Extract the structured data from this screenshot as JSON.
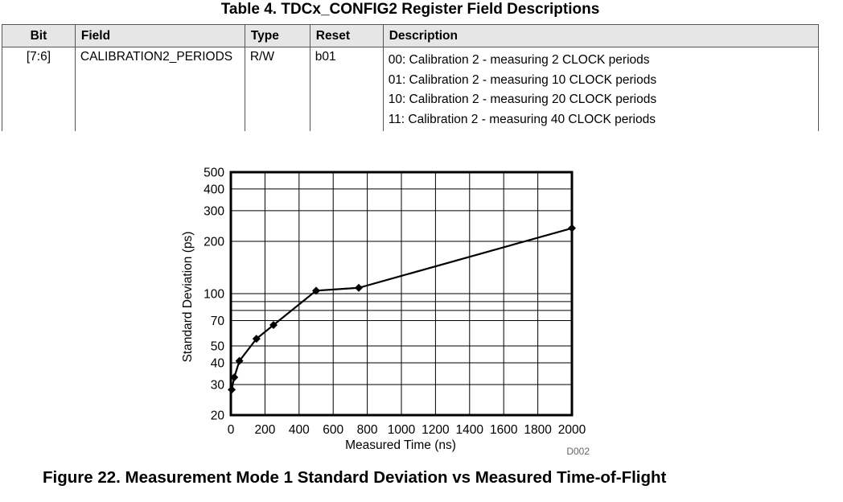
{
  "table": {
    "title": "Table 4. TDCx_CONFIG2 Register Field Descriptions",
    "headers": [
      "Bit",
      "Field",
      "Type",
      "Reset",
      "Description"
    ],
    "row": {
      "bit": "[7:6]",
      "field": "CALIBRATION2_PERIODS",
      "type": "R/W",
      "reset": "b01",
      "description": [
        "00: Calibration 2 - measuring 2 CLOCK periods",
        "01: Calibration 2 - measuring 10 CLOCK periods",
        "10: Calibration 2 - measuring 20 CLOCK periods",
        "11: Calibration 2 - measuring 40 CLOCK periods"
      ]
    }
  },
  "figure": {
    "caption": "Figure 22.  Measurement Mode 1 Standard Deviation vs Measured Time-of-Flight",
    "figure_id": "D002"
  },
  "chart_data": {
    "type": "line",
    "title": "",
    "xlabel": "Measured Time (ns)",
    "ylabel": "Standard Deviation (ps)",
    "xlim": [
      0,
      2000
    ],
    "ylim": [
      20,
      500
    ],
    "yscale": "log",
    "grid": true,
    "x_ticks": [
      0,
      200,
      400,
      600,
      800,
      1000,
      1200,
      1400,
      1600,
      1800,
      2000
    ],
    "y_ticks": [
      20,
      30,
      40,
      50,
      70,
      100,
      200,
      300,
      400,
      500
    ],
    "y_gridlines": [
      30,
      40,
      50,
      70,
      80,
      90,
      100,
      200,
      300,
      400
    ],
    "series": [
      {
        "x": [
          5,
          20,
          50,
          150,
          250,
          500,
          750,
          2000
        ],
        "y": [
          28,
          33,
          41,
          55,
          66,
          104,
          108,
          238
        ]
      }
    ]
  }
}
